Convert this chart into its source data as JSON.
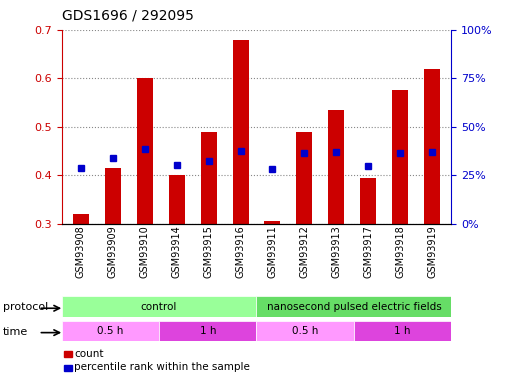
{
  "title": "GDS1696 / 292095",
  "samples": [
    "GSM93908",
    "GSM93909",
    "GSM93910",
    "GSM93914",
    "GSM93915",
    "GSM93916",
    "GSM93911",
    "GSM93912",
    "GSM93913",
    "GSM93917",
    "GSM93918",
    "GSM93919"
  ],
  "count_values": [
    0.32,
    0.415,
    0.6,
    0.4,
    0.49,
    0.68,
    0.305,
    0.49,
    0.535,
    0.395,
    0.575,
    0.62
  ],
  "percentile_values": [
    0.415,
    0.435,
    0.455,
    0.42,
    0.43,
    0.45,
    0.413,
    0.445,
    0.447,
    0.418,
    0.445,
    0.448
  ],
  "ylim_left": [
    0.3,
    0.7
  ],
  "ylim_right": [
    0,
    100
  ],
  "yticks_left": [
    0.3,
    0.4,
    0.5,
    0.6,
    0.7
  ],
  "yticks_right": [
    0,
    25,
    50,
    75,
    100
  ],
  "ytick_labels_right": [
    "0%",
    "25%",
    "50%",
    "75%",
    "100%"
  ],
  "bar_color": "#cc0000",
  "dot_color": "#0000cc",
  "bar_width": 0.5,
  "protocol_groups": [
    {
      "label": "control",
      "start": 0,
      "end": 6,
      "color": "#99ff99"
    },
    {
      "label": "nanosecond pulsed electric fields",
      "start": 6,
      "end": 12,
      "color": "#66dd66"
    }
  ],
  "time_groups": [
    {
      "label": "0.5 h",
      "start": 0,
      "end": 3,
      "color": "#ff99ff"
    },
    {
      "label": "1 h",
      "start": 3,
      "end": 6,
      "color": "#dd44dd"
    },
    {
      "label": "0.5 h",
      "start": 6,
      "end": 9,
      "color": "#ff99ff"
    },
    {
      "label": "1 h",
      "start": 9,
      "end": 12,
      "color": "#dd44dd"
    }
  ],
  "legend_count_label": "count",
  "legend_percentile_label": "percentile rank within the sample",
  "xlabel_protocol": "protocol",
  "xlabel_time": "time",
  "bg_color": "#ffffff",
  "plot_bg": "#ffffff",
  "grid_color": "#888888",
  "axis_label_color_left": "#cc0000",
  "axis_label_color_right": "#0000cc"
}
